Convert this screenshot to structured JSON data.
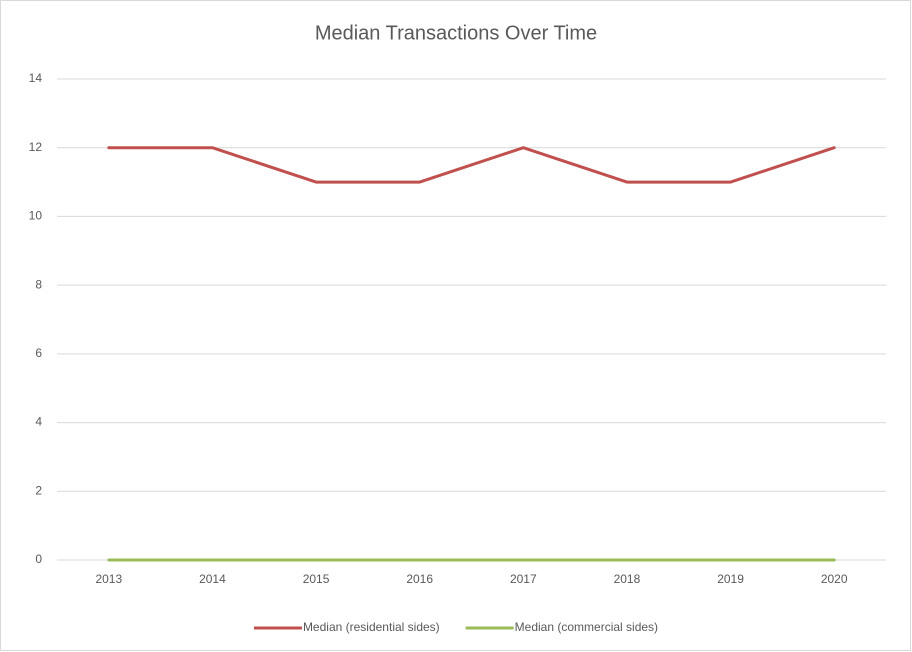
{
  "chart_data": {
    "type": "line",
    "title": "Median Transactions Over Time",
    "categories": [
      "2013",
      "2014",
      "2015",
      "2016",
      "2017",
      "2018",
      "2019",
      "2020"
    ],
    "series": [
      {
        "name": "Median (residential sides)",
        "color": "#c0504d",
        "values": [
          12,
          12,
          11,
          11,
          12,
          11,
          11,
          12
        ]
      },
      {
        "name": "Median (commercial sides)",
        "color": "#9bbb59",
        "values": [
          0,
          0,
          0,
          0,
          0,
          0,
          0,
          0
        ]
      }
    ],
    "ylim": [
      0,
      14
    ],
    "yticks": [
      0,
      2,
      4,
      6,
      8,
      10,
      12,
      14
    ],
    "grid": true,
    "legend": "bottom"
  }
}
